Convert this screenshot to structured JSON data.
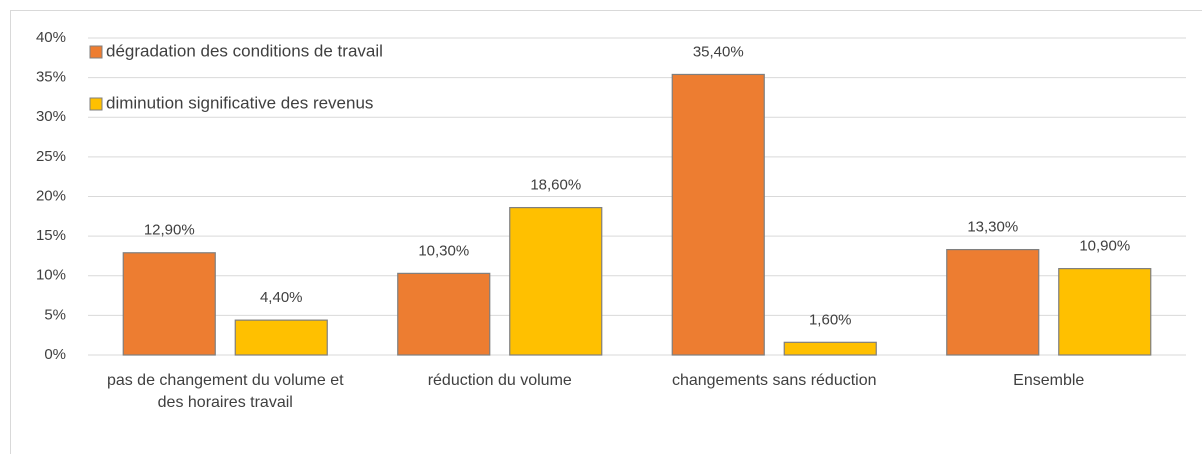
{
  "chart_data": {
    "type": "bar",
    "categories": [
      "pas de changement du volume et des horaires travail",
      "réduction du volume",
      "changements sans réduction",
      "Ensemble"
    ],
    "series": [
      {
        "name": "dégradation des conditions de travail",
        "color": "#ed7d31",
        "values": [
          12.9,
          10.3,
          35.4,
          13.3
        ],
        "value_labels": [
          "12,90%",
          "10,30%",
          "35,40%",
          "13,30%"
        ]
      },
      {
        "name": "diminution significative des revenus",
        "color": "#ffc000",
        "values": [
          4.4,
          18.6,
          1.6,
          10.9
        ],
        "value_labels": [
          "4,40%",
          "18,60%",
          "1,60%",
          "10,90%"
        ]
      }
    ],
    "ylim": [
      0,
      40
    ],
    "yticks": [
      {
        "value": 0,
        "label": "0%"
      },
      {
        "value": 5,
        "label": "5%"
      },
      {
        "value": 10,
        "label": "10%"
      },
      {
        "value": 15,
        "label": "15%"
      },
      {
        "value": 20,
        "label": "20%"
      },
      {
        "value": 25,
        "label": "25%"
      },
      {
        "value": 30,
        "label": "30%"
      },
      {
        "value": 35,
        "label": "35%"
      },
      {
        "value": 40,
        "label": "40%"
      }
    ],
    "grid": true,
    "legend": "top-left"
  }
}
